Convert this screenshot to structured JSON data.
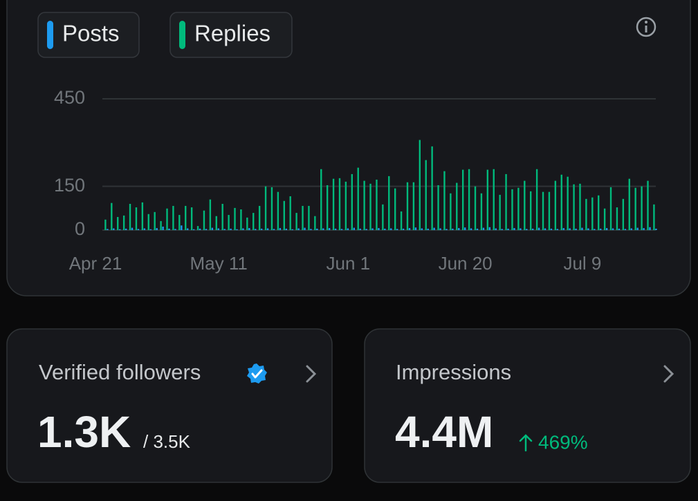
{
  "chart_data": {
    "type": "bar",
    "categories": [
      "Apr 21",
      null,
      null,
      null,
      null,
      null,
      null,
      null,
      null,
      null,
      null,
      null,
      null,
      null,
      null,
      null,
      null,
      null,
      null,
      null,
      "May 11",
      null,
      null,
      null,
      null,
      null,
      null,
      null,
      null,
      null,
      null,
      null,
      null,
      null,
      null,
      null,
      null,
      null,
      null,
      null,
      null,
      "Jun 1",
      null,
      null,
      null,
      null,
      null,
      null,
      null,
      null,
      null,
      null,
      null,
      null,
      null,
      null,
      null,
      null,
      null,
      null,
      "Jun 20",
      null,
      null,
      null,
      null,
      null,
      null,
      null,
      null,
      null,
      null,
      null,
      null,
      null,
      null,
      null,
      null,
      null,
      null,
      "Jul 9",
      null,
      null,
      null,
      null,
      null,
      null,
      null,
      null,
      null,
      null
    ],
    "series": [
      {
        "name": "Posts",
        "color": "#1d9bf0",
        "values": [
          4,
          6,
          3,
          5,
          8,
          4,
          6,
          3,
          7,
          12,
          5,
          4,
          16,
          6,
          3,
          5,
          4,
          8,
          6,
          4,
          5,
          3,
          6,
          7,
          4,
          5,
          6,
          4,
          7,
          5,
          3,
          6,
          8,
          4,
          5,
          6,
          7,
          5,
          4,
          6,
          8,
          5,
          4,
          6,
          7,
          5,
          6,
          4,
          5,
          7,
          9,
          6,
          5,
          8,
          6,
          4,
          5,
          7,
          9,
          6,
          5,
          8,
          10,
          6,
          4,
          5,
          7,
          6,
          4,
          5,
          8,
          6,
          5,
          4,
          7,
          6,
          5,
          8,
          6,
          4,
          5,
          7,
          6,
          5,
          4,
          6,
          8,
          7,
          10,
          5
        ]
      },
      {
        "name": "Replies",
        "color": "#00ba7c",
        "values": [
          36,
          93,
          45,
          50,
          90,
          78,
          95,
          55,
          62,
          31,
          74,
          83,
          52,
          83,
          78,
          14,
          67,
          105,
          48,
          90,
          52,
          76,
          71,
          43,
          59,
          83,
          150,
          147,
          131,
          100,
          116,
          59,
          83,
          83,
          48,
          209,
          154,
          176,
          178,
          166,
          192,
          214,
          169,
          159,
          173,
          88,
          185,
          143,
          64,
          164,
          164,
          309,
          240,
          287,
          154,
          202,
          126,
          162,
          207,
          209,
          150,
          126,
          207,
          209,
          121,
          192,
          140,
          145,
          169,
          133,
          209,
          131,
          131,
          169,
          190,
          183,
          157,
          159,
          107,
          112,
          119,
          74,
          147,
          78,
          107,
          176,
          145,
          150,
          169,
          88
        ]
      }
    ],
    "ylim": [
      0,
      450
    ],
    "yticks": [
      0,
      150,
      450
    ],
    "grid": true
  },
  "cards": [
    {
      "title": "Verified followers",
      "value": "1.3K",
      "total": "/ 3.5K"
    },
    {
      "title": "Impressions",
      "value": "4.4M",
      "change": "469%"
    }
  ]
}
